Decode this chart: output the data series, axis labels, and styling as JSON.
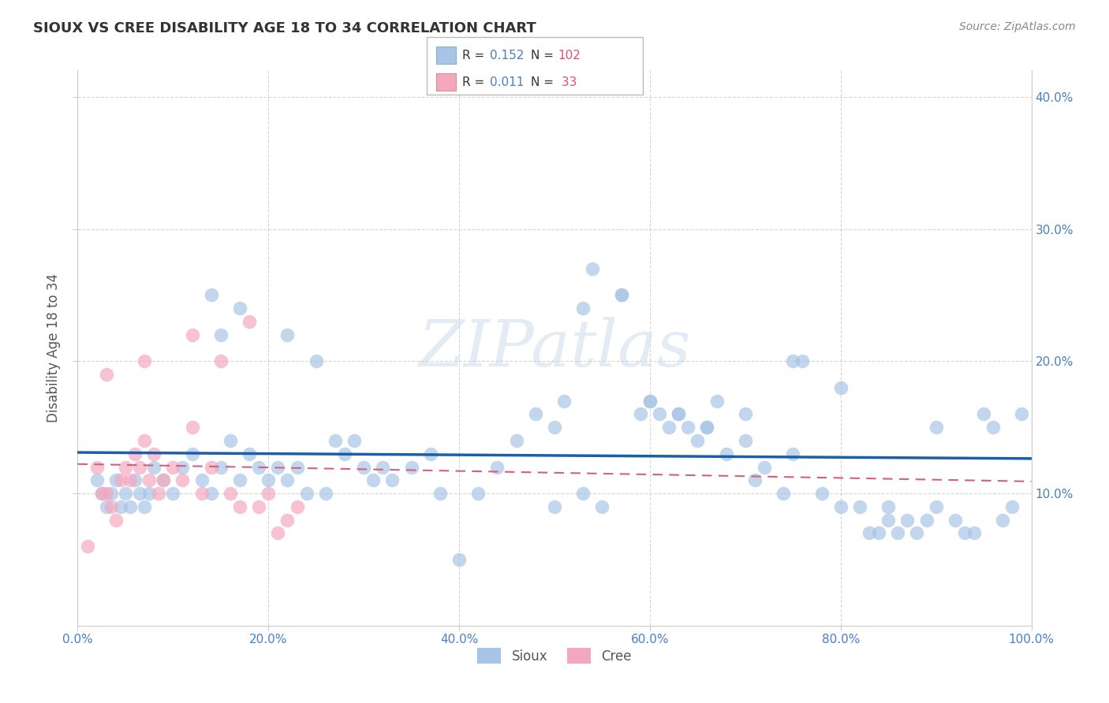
{
  "title": "SIOUX VS CREE DISABILITY AGE 18 TO 34 CORRELATION CHART",
  "source": "Source: ZipAtlas.com",
  "ylabel": "Disability Age 18 to 34",
  "xlim": [
    0.0,
    1.0
  ],
  "ylim": [
    0.0,
    0.42
  ],
  "xticks": [
    0.0,
    0.2,
    0.4,
    0.6,
    0.8,
    1.0
  ],
  "yticks": [
    0.1,
    0.2,
    0.3,
    0.4
  ],
  "xtick_labels": [
    "0.0%",
    "20.0%",
    "40.0%",
    "60.0%",
    "80.0%",
    "100.0%"
  ],
  "ytick_labels_right": [
    "10.0%",
    "20.0%",
    "30.0%",
    "40.0%"
  ],
  "watermark": "ZIPatlas",
  "sioux_color": "#a8c5e8",
  "cree_color": "#f4a8be",
  "sioux_line_color": "#1a5fa8",
  "cree_line_color": "#d46080",
  "bg_color": "#ffffff",
  "grid_color": "#bbbbbb",
  "title_color": "#333333",
  "source_color": "#888888",
  "tick_color": "#4a7fc1",
  "R_color": "#4a7fc1",
  "N_color": "#e05070",
  "legend_R1": "0.152",
  "legend_N1": "102",
  "legend_R2": "0.011",
  "legend_N2": " 33",
  "sioux_x": [
    0.02,
    0.025,
    0.03,
    0.035,
    0.04,
    0.045,
    0.05,
    0.055,
    0.06,
    0.065,
    0.07,
    0.075,
    0.08,
    0.09,
    0.1,
    0.11,
    0.12,
    0.13,
    0.14,
    0.15,
    0.16,
    0.17,
    0.18,
    0.19,
    0.2,
    0.21,
    0.22,
    0.23,
    0.24,
    0.25,
    0.26,
    0.27,
    0.28,
    0.29,
    0.3,
    0.31,
    0.32,
    0.33,
    0.35,
    0.37,
    0.38,
    0.4,
    0.42,
    0.44,
    0.46,
    0.48,
    0.5,
    0.51,
    0.53,
    0.54,
    0.55,
    0.57,
    0.59,
    0.6,
    0.61,
    0.62,
    0.63,
    0.64,
    0.65,
    0.66,
    0.67,
    0.68,
    0.7,
    0.71,
    0.72,
    0.74,
    0.75,
    0.76,
    0.78,
    0.8,
    0.82,
    0.83,
    0.84,
    0.85,
    0.86,
    0.87,
    0.88,
    0.89,
    0.9,
    0.92,
    0.93,
    0.94,
    0.95,
    0.97,
    0.98,
    0.99,
    0.14,
    0.17,
    0.5,
    0.53,
    0.57,
    0.6,
    0.63,
    0.66,
    0.7,
    0.75,
    0.8,
    0.85,
    0.9,
    0.96,
    0.15,
    0.22
  ],
  "sioux_y": [
    0.11,
    0.1,
    0.09,
    0.1,
    0.11,
    0.09,
    0.1,
    0.09,
    0.11,
    0.1,
    0.09,
    0.1,
    0.12,
    0.11,
    0.1,
    0.12,
    0.13,
    0.11,
    0.1,
    0.12,
    0.14,
    0.11,
    0.13,
    0.12,
    0.11,
    0.12,
    0.11,
    0.12,
    0.1,
    0.2,
    0.1,
    0.14,
    0.13,
    0.14,
    0.12,
    0.11,
    0.12,
    0.11,
    0.12,
    0.13,
    0.1,
    0.05,
    0.1,
    0.12,
    0.14,
    0.16,
    0.09,
    0.17,
    0.1,
    0.27,
    0.09,
    0.25,
    0.16,
    0.17,
    0.16,
    0.15,
    0.16,
    0.15,
    0.14,
    0.15,
    0.17,
    0.13,
    0.16,
    0.11,
    0.12,
    0.1,
    0.2,
    0.2,
    0.1,
    0.09,
    0.09,
    0.07,
    0.07,
    0.09,
    0.07,
    0.08,
    0.07,
    0.08,
    0.09,
    0.08,
    0.07,
    0.07,
    0.16,
    0.08,
    0.09,
    0.16,
    0.25,
    0.24,
    0.15,
    0.24,
    0.25,
    0.17,
    0.16,
    0.15,
    0.14,
    0.13,
    0.18,
    0.08,
    0.15,
    0.15,
    0.22,
    0.22
  ],
  "cree_x": [
    0.01,
    0.02,
    0.025,
    0.03,
    0.035,
    0.04,
    0.045,
    0.05,
    0.055,
    0.06,
    0.065,
    0.07,
    0.075,
    0.08,
    0.085,
    0.09,
    0.1,
    0.11,
    0.12,
    0.13,
    0.14,
    0.15,
    0.16,
    0.17,
    0.18,
    0.19,
    0.2,
    0.21,
    0.22,
    0.23,
    0.03,
    0.07,
    0.12
  ],
  "cree_y": [
    0.06,
    0.12,
    0.1,
    0.1,
    0.09,
    0.08,
    0.11,
    0.12,
    0.11,
    0.13,
    0.12,
    0.14,
    0.11,
    0.13,
    0.1,
    0.11,
    0.12,
    0.11,
    0.22,
    0.1,
    0.12,
    0.2,
    0.1,
    0.09,
    0.23,
    0.09,
    0.1,
    0.07,
    0.08,
    0.09,
    0.19,
    0.2,
    0.15
  ]
}
